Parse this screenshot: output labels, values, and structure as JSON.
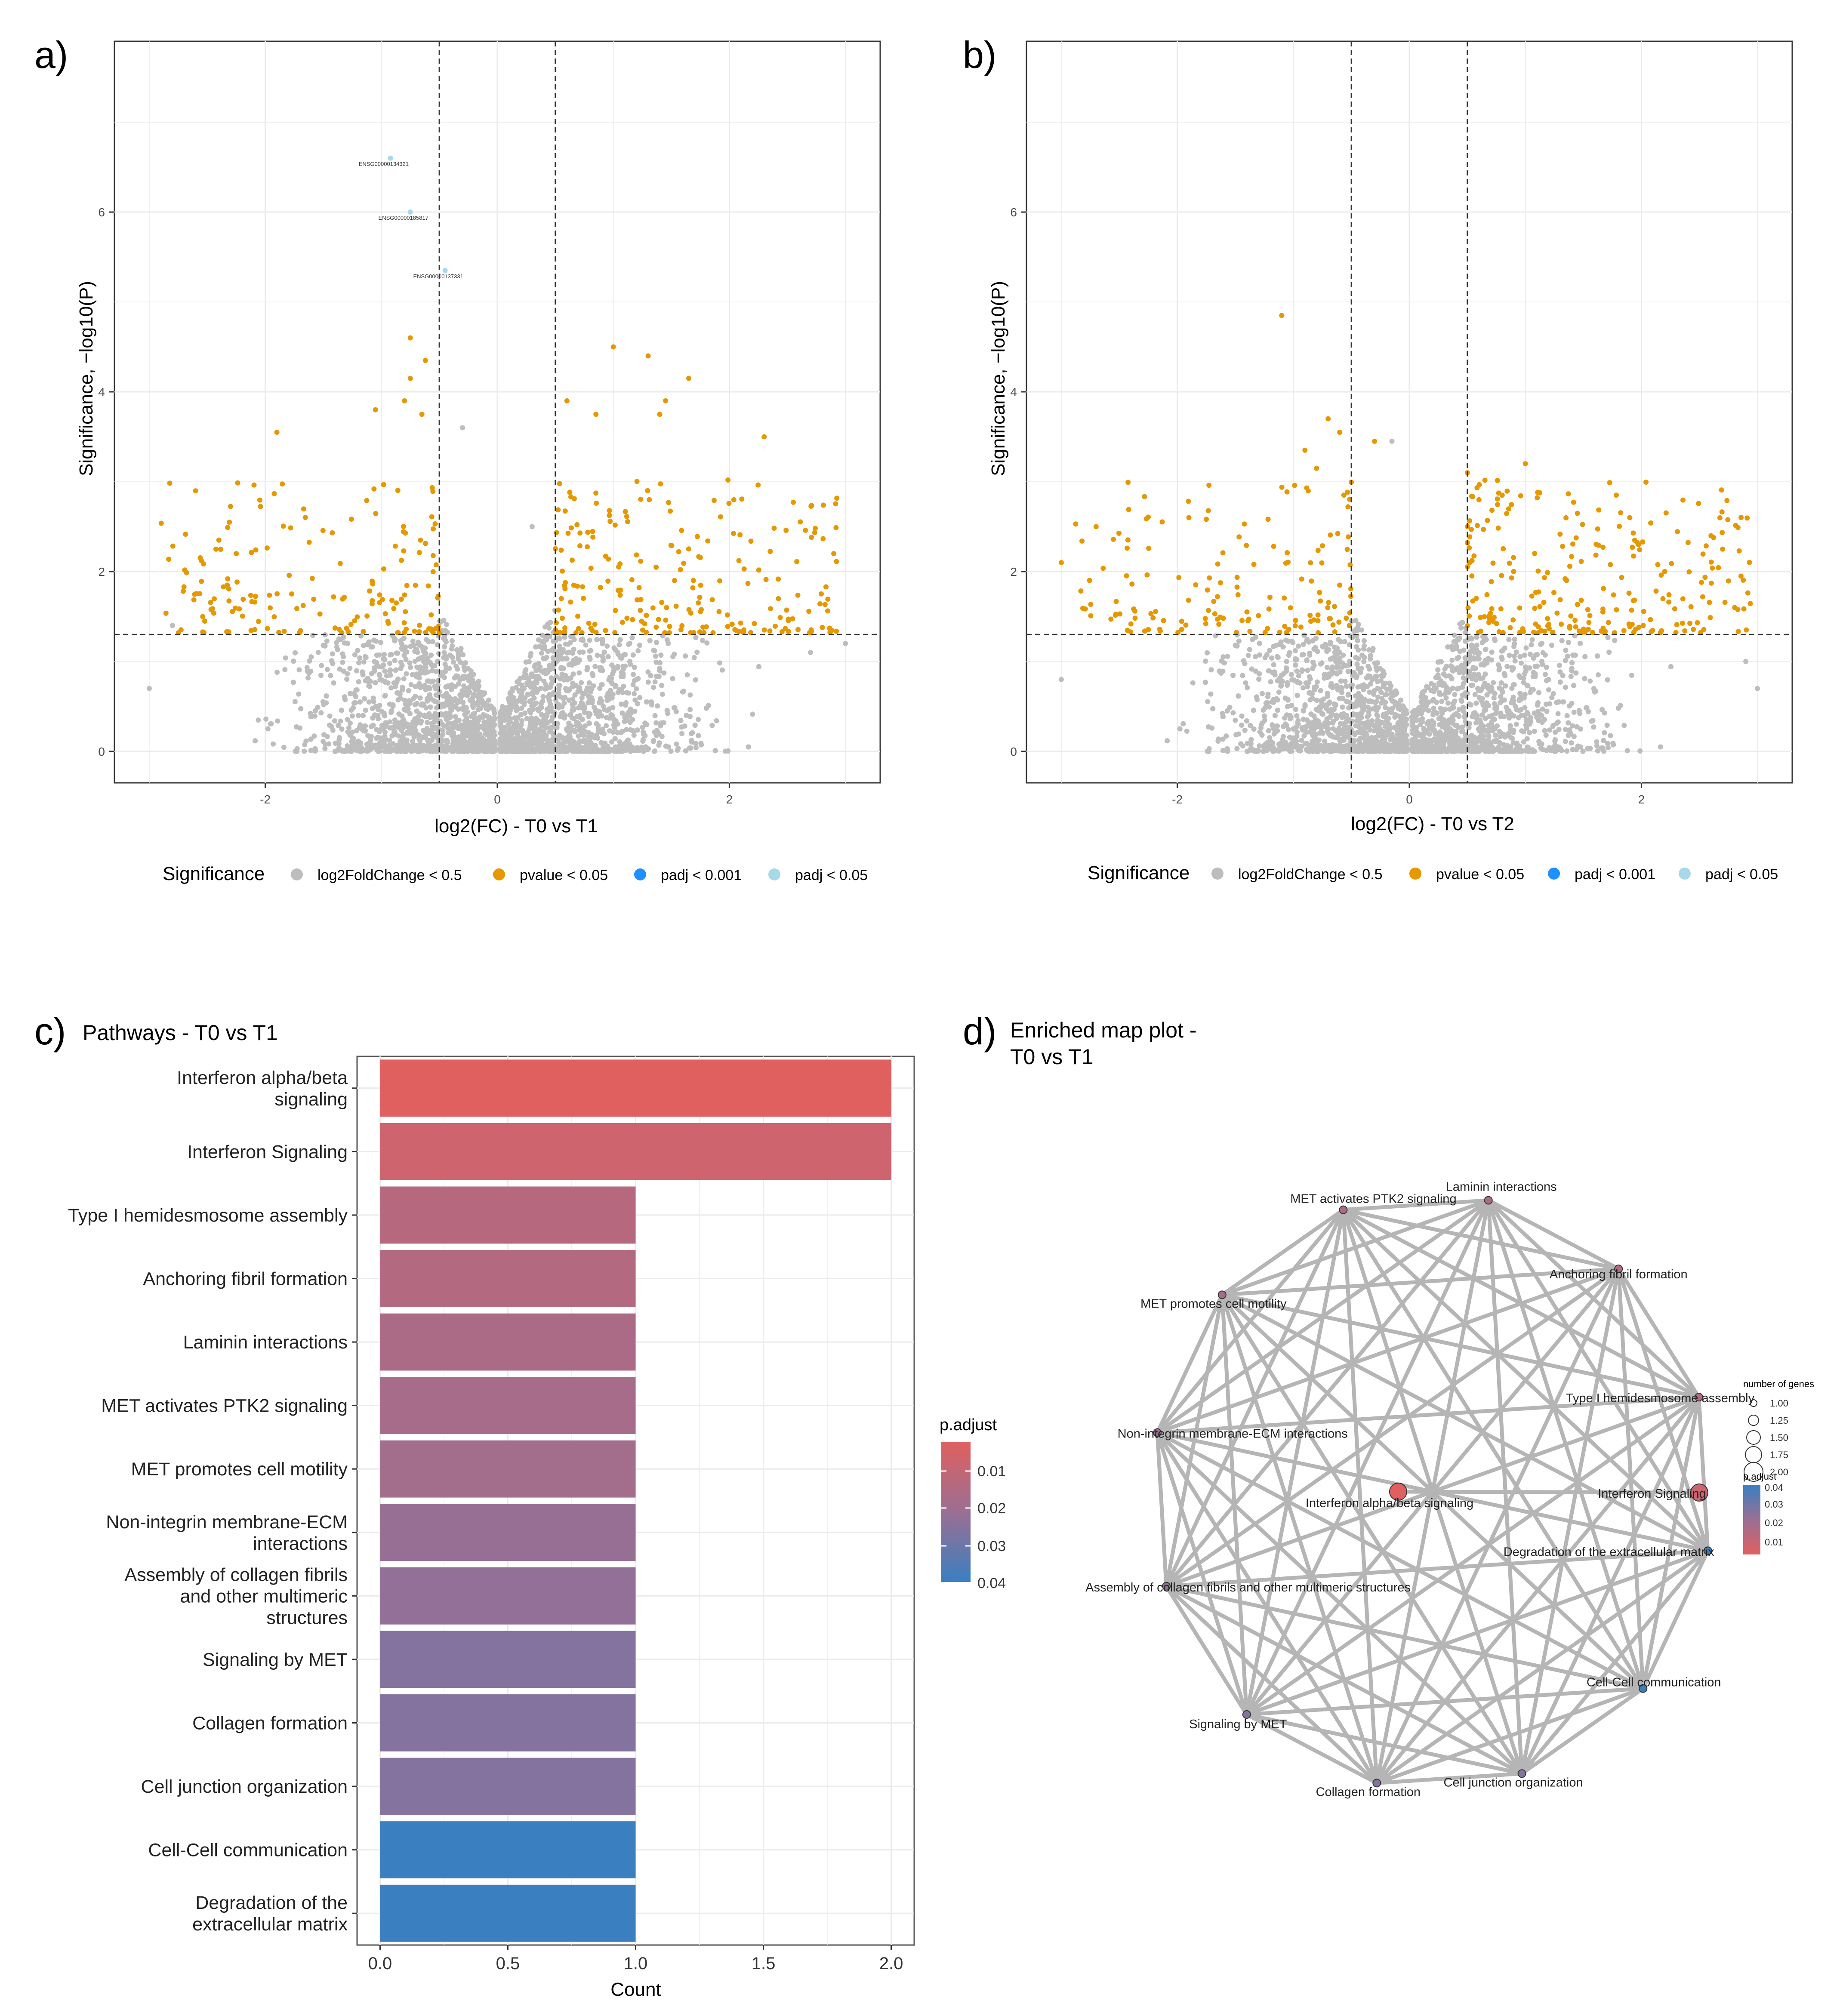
{
  "figure_title": "",
  "colors": {
    "gray_points": "#bdbdbd",
    "orange_points": "#e69800",
    "blue_points": "#1e90ff",
    "lightblue_points": "#a6d9ea",
    "panel_border": "#333333",
    "grid": "#ebebeb",
    "edge": "#b5b5b5",
    "padj_low": "#e06060",
    "padj_high": "#3a7fc0"
  },
  "chart_data": [
    {
      "id": "a",
      "panel_letter": "a)",
      "type": "scatter",
      "title": "",
      "xlabel": "log2(FC) - T0 vs T1",
      "ylabel": "Significance, −log10(P)",
      "xlim": [
        -3.3,
        3.3
      ],
      "ylim": [
        -0.35,
        7.9
      ],
      "xticks": [
        -2,
        0,
        2
      ],
      "yticks": [
        0,
        2,
        4,
        6
      ],
      "fc_cutoff": 0.5,
      "p_cutoff_line": 1.3,
      "legend_title": "Significance",
      "legend": [
        "log2FoldChange < 0.5",
        "pvalue < 0.05",
        "padj < 0.001",
        "padj < 0.05"
      ],
      "legend_position": "bottom",
      "labelled_points": [
        {
          "label": "ENSG00000134321",
          "x": -0.92,
          "y": 6.6
        },
        {
          "label": "ENSG00000185817",
          "x": -0.75,
          "y": 6.0
        },
        {
          "label": "ENSG00000137331",
          "x": -0.45,
          "y": 5.35
        }
      ],
      "orange_points": [
        [
          -1.9,
          3.55
        ],
        [
          -0.75,
          4.6
        ],
        [
          -0.62,
          4.35
        ],
        [
          -0.75,
          4.15
        ],
        [
          -1.05,
          3.8
        ],
        [
          -0.65,
          3.75
        ],
        [
          1.0,
          4.5
        ],
        [
          1.3,
          4.4
        ],
        [
          1.65,
          4.15
        ],
        [
          1.45,
          3.9
        ],
        [
          0.6,
          3.9
        ],
        [
          2.3,
          3.5
        ],
        [
          0.85,
          3.75
        ],
        [
          1.4,
          3.75
        ],
        [
          -0.8,
          3.9
        ],
        [
          -2.4,
          2.35
        ],
        [
          -2.25,
          2.2
        ],
        [
          2.9,
          2.2
        ]
      ],
      "gray_extreme_points": [
        [
          -2.8,
          1.4
        ],
        [
          -3.0,
          0.7
        ],
        [
          3.0,
          1.2
        ],
        [
          2.7,
          1.1
        ],
        [
          -0.3,
          3.6
        ],
        [
          0.3,
          2.5
        ]
      ]
    },
    {
      "id": "b",
      "panel_letter": "b)",
      "type": "scatter",
      "title": "",
      "xlabel": "log2(FC) - T0 vs T2",
      "ylabel": "Significance, −log10(P)",
      "xlim": [
        -3.3,
        3.3
      ],
      "ylim": [
        -0.35,
        7.9
      ],
      "xticks": [
        -2,
        0,
        2
      ],
      "yticks": [
        0,
        2,
        4,
        6
      ],
      "fc_cutoff": 0.5,
      "p_cutoff_line": 1.3,
      "legend_title": "Significance",
      "legend": [
        "log2FoldChange < 0.5",
        "pvalue < 0.05",
        "padj < 0.001",
        "padj < 0.05"
      ],
      "legend_position": "bottom",
      "labelled_points": [],
      "orange_points": [
        [
          -1.1,
          4.85
        ],
        [
          -0.7,
          3.7
        ],
        [
          -0.6,
          3.55
        ],
        [
          -0.9,
          3.35
        ],
        [
          -0.8,
          3.15
        ],
        [
          -0.3,
          3.45
        ],
        [
          1.0,
          3.2
        ],
        [
          0.5,
          3.1
        ],
        [
          0.8,
          2.85
        ],
        [
          -2.7,
          2.5
        ],
        [
          -1.9,
          2.6
        ],
        [
          -3.0,
          2.1
        ],
        [
          2.6,
          2.4
        ],
        [
          1.9,
          2.6
        ],
        [
          2.7,
          2.25
        ],
        [
          0.6,
          2.8
        ]
      ],
      "gray_extreme_points": [
        [
          -3.0,
          0.8
        ],
        [
          2.9,
          1.0
        ],
        [
          -0.15,
          3.45
        ],
        [
          3.0,
          0.7
        ]
      ]
    },
    {
      "id": "c",
      "panel_letter": "c)",
      "type": "bar",
      "orientation": "horizontal",
      "title": "Pathways - T0 vs T1",
      "xlabel": "Count",
      "ylabel": "",
      "xlim": [
        -0.09,
        2.09
      ],
      "xticks": [
        "0.0",
        "0.5",
        "1.0",
        "1.5",
        "2.0"
      ],
      "categories": [
        "Interferon alpha/beta signaling",
        "Interferon Signaling",
        "Type I hemidesmosome assembly",
        "Anchoring fibril formation",
        "Laminin interactions",
        "MET activates PTK2 signaling",
        "MET promotes cell motility",
        "Non-integrin membrane-ECM interactions",
        "Assembly of collagen fibrils and other multimeric structures",
        "Signaling by MET",
        "Collagen formation",
        "Cell junction organization",
        "Cell-Cell communication",
        "Degradation of the extracellular matrix"
      ],
      "category_lines": [
        [
          "Interferon alpha/beta",
          "signaling"
        ],
        [
          "Interferon Signaling"
        ],
        [
          "Type I hemidesmosome assembly"
        ],
        [
          "Anchoring fibril formation"
        ],
        [
          "Laminin interactions"
        ],
        [
          "MET activates PTK2 signaling"
        ],
        [
          "MET promotes cell motility"
        ],
        [
          "Non-integrin membrane-ECM",
          "interactions"
        ],
        [
          "Assembly of collagen fibrils",
          "and other multimeric",
          "structures"
        ],
        [
          "Signaling by MET"
        ],
        [
          "Collagen formation"
        ],
        [
          "Cell junction organization"
        ],
        [
          "Cell-Cell communication"
        ],
        [
          "Degradation of the",
          "extracellular matrix"
        ]
      ],
      "values": [
        2,
        2,
        1,
        1,
        1,
        1,
        1,
        1,
        1,
        1,
        1,
        1,
        1,
        1
      ],
      "p_adjust": [
        0.003,
        0.008,
        0.014,
        0.015,
        0.017,
        0.018,
        0.019,
        0.022,
        0.023,
        0.026,
        0.026,
        0.026,
        0.04,
        0.04
      ],
      "legend_title": "p.adjust",
      "legend_ticks": [
        "0.01",
        "0.02",
        "0.03",
        "0.04"
      ],
      "legend_position": "right"
    },
    {
      "id": "d",
      "panel_letter": "d)",
      "type": "network",
      "title": "Enriched map plot -",
      "title_line2": "T0 vs T1",
      "nodes": [
        {
          "label": "Laminin interactions",
          "genes": 1,
          "p_adjust": 0.017
        },
        {
          "label": "Anchoring fibril formation",
          "genes": 1,
          "p_adjust": 0.015
        },
        {
          "label": "Type I hemidesmosome assembly",
          "genes": 1,
          "p_adjust": 0.014
        },
        {
          "label": "Interferon Signaling",
          "genes": 2,
          "p_adjust": 0.008
        },
        {
          "label": "Degradation of the extracellular matrix",
          "genes": 1,
          "p_adjust": 0.04
        },
        {
          "label": "Cell-Cell communication",
          "genes": 1,
          "p_adjust": 0.04
        },
        {
          "label": "Cell junction organization",
          "genes": 1,
          "p_adjust": 0.026
        },
        {
          "label": "Collagen formation",
          "genes": 1,
          "p_adjust": 0.026
        },
        {
          "label": "Signaling by MET",
          "genes": 1,
          "p_adjust": 0.026
        },
        {
          "label": "Assembly of collagen fibrils and other multimeric structures",
          "genes": 1,
          "p_adjust": 0.023
        },
        {
          "label": "Non-integrin membrane-ECM interactions",
          "genes": 1,
          "p_adjust": 0.022
        },
        {
          "label": "MET promotes cell motility",
          "genes": 1,
          "p_adjust": 0.019
        },
        {
          "label": "MET activates PTK2 signaling",
          "genes": 1,
          "p_adjust": 0.018
        },
        {
          "label": "Interferon alpha/beta signaling",
          "genes": 2,
          "p_adjust": 0.003
        }
      ],
      "edges": "all pairs among 12 outer nodes; Interferon Signaling linked to Interferon alpha/beta signaling",
      "size_legend_title": "number of genes",
      "size_legend": [
        "1.00",
        "1.25",
        "1.50",
        "1.75",
        "2.00"
      ],
      "color_legend_title": "p.adjust",
      "color_legend_ticks": [
        "0.04",
        "0.03",
        "0.02",
        "0.01"
      ]
    }
  ]
}
